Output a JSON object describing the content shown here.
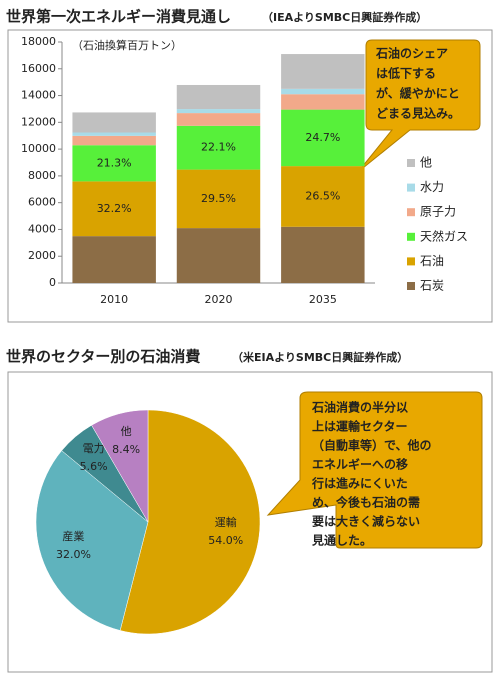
{
  "chart_data": [
    {
      "type": "bar",
      "stacked": true,
      "title": "世界第一次エネルギー消費見通し",
      "subtitle": "（IEAよりSMBC日興証券作成）",
      "unit_label": "（石油換算百万トン）",
      "categories": [
        "2010",
        "2020",
        "2035"
      ],
      "series": [
        {
          "name": "石炭",
          "color": "#8c6d46",
          "values": [
            3500,
            4100,
            4200
          ]
        },
        {
          "name": "石油",
          "color": "#d9a300",
          "values": [
            4090,
            4370,
            4530
          ],
          "share_labels": [
            "32.2%",
            "29.5%",
            "26.5%"
          ]
        },
        {
          "name": "天然ガス",
          "color": "#57f03a",
          "values": [
            2700,
            3270,
            4220
          ],
          "share_labels": [
            "21.3%",
            "22.1%",
            "24.7%"
          ]
        },
        {
          "name": "原子力",
          "color": "#f2a98a",
          "values": [
            700,
            950,
            1150
          ]
        },
        {
          "name": "水力",
          "color": "#a8dbe8",
          "values": [
            250,
            300,
            400
          ]
        },
        {
          "name": "他",
          "color": "#c0c0c0",
          "values": [
            1500,
            1800,
            2600
          ]
        }
      ],
      "ylim": [
        0,
        18000
      ],
      "yticks": [
        0,
        2000,
        4000,
        6000,
        8000,
        10000,
        12000,
        14000,
        16000,
        18000
      ],
      "callout": [
        "石油のシェア",
        "は低下する",
        "が、緩やかにと",
        "どまる見込み。"
      ]
    },
    {
      "type": "pie",
      "title": "世界のセクター別の石油消費",
      "subtitle": "（米EIAよりSMBC日興証券作成）",
      "categories": [
        "運輸",
        "産業",
        "電力",
        "他"
      ],
      "values": [
        54.0,
        32.0,
        5.6,
        8.4
      ],
      "value_labels": [
        "54.0%",
        "32.0%",
        "5.6%",
        "8.4%"
      ],
      "colors": [
        "#d9a300",
        "#5fb3bd",
        "#3f8a90",
        "#b780c2"
      ],
      "callout": [
        "石油消費の半分以",
        "上は運輸セクター",
        "（自動車等）で、他の",
        "エネルギーへの移",
        "行は進みにくいた",
        "め、今後も石油の需",
        "要は大きく減らない",
        "見通した。"
      ]
    }
  ]
}
